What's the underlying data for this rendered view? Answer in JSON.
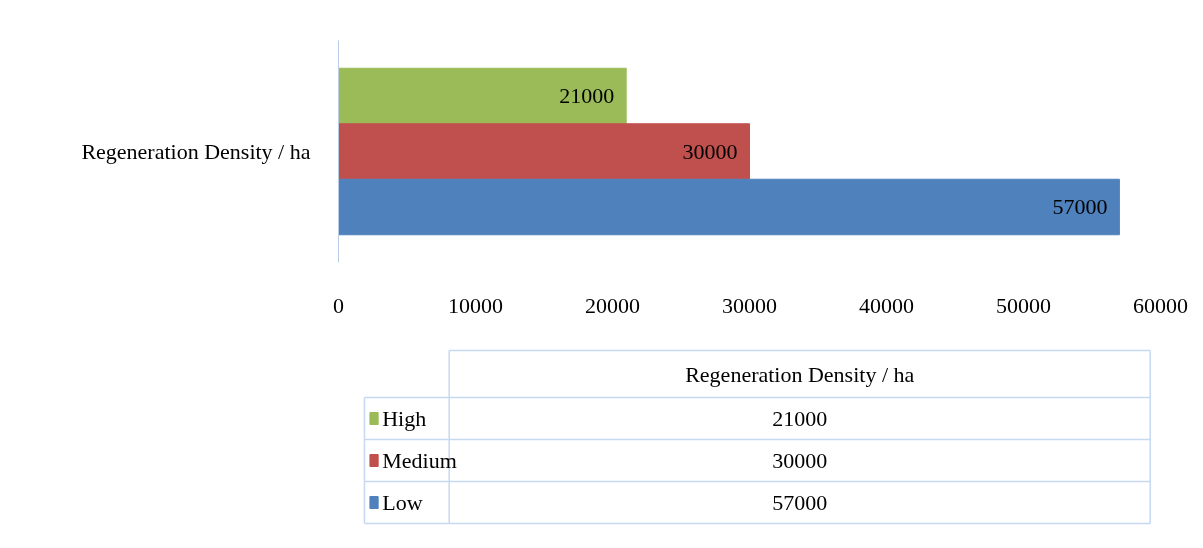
{
  "chart_data": {
    "type": "bar",
    "orientation": "horizontal",
    "categories": [
      "Regeneration Density / ha"
    ],
    "series": [
      {
        "name": "High",
        "color": "#9bbb59",
        "values": [
          21000
        ],
        "value_labels": [
          "21000"
        ]
      },
      {
        "name": "Medium",
        "color": "#c0504d",
        "values": [
          30000
        ],
        "value_labels": [
          "30000"
        ]
      },
      {
        "name": "Low",
        "color": "#4f81bd",
        "values": [
          57000
        ],
        "value_labels": [
          "57000"
        ]
      }
    ],
    "xlim": [
      0,
      60000
    ],
    "xticks": [
      0,
      10000,
      20000,
      30000,
      40000,
      50000,
      60000
    ],
    "annotations": [
      "21000",
      "30000",
      "57000"
    ],
    "legend": "bottom",
    "grid": false
  }
}
